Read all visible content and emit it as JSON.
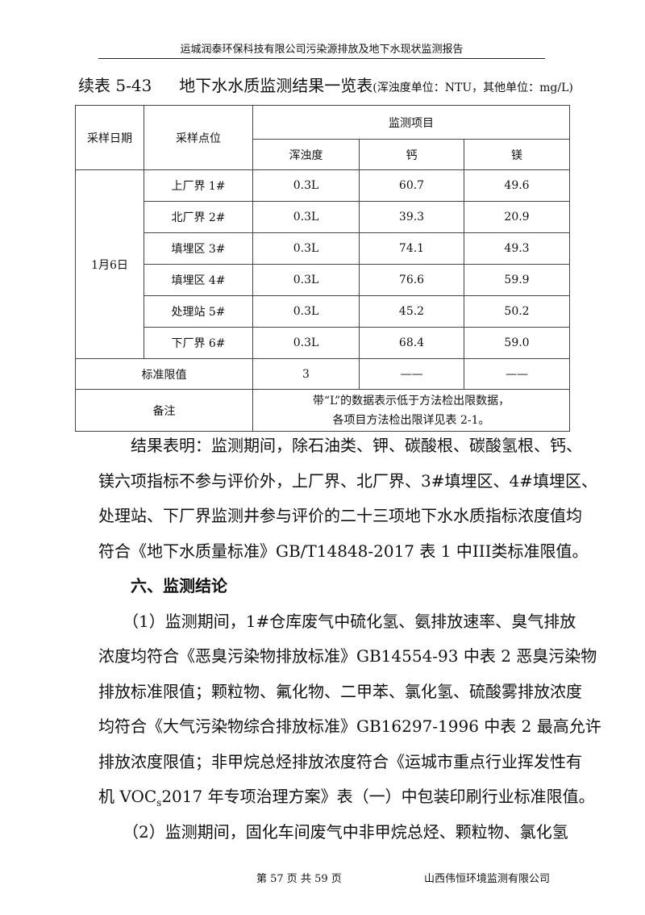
{
  "header": {
    "title": "运城润泰环保科技有限公司污染源排放及地下水现状监测报告"
  },
  "table": {
    "caption_no": "续表 5-43",
    "caption": "地下水水质监测结果一览表",
    "caption_unit": "(浑浊度单位：NTU，其他单位：mg/L)",
    "col_date": "采样日期",
    "col_site": "采样点位",
    "col_group": "监测项目",
    "cols": [
      "浑浊度",
      "钙",
      "镁"
    ],
    "date": "1月6日",
    "rows": [
      {
        "site": "上厂界 1#",
        "v": [
          "0.3L",
          "60.7",
          "49.6"
        ]
      },
      {
        "site": "北厂界 2#",
        "v": [
          "0.3L",
          "39.3",
          "20.9"
        ]
      },
      {
        "site": "填埋区 3#",
        "v": [
          "0.3L",
          "74.1",
          "49.3"
        ]
      },
      {
        "site": "填埋区 4#",
        "v": [
          "0.3L",
          "76.6",
          "59.9"
        ]
      },
      {
        "site": "处理站 5#",
        "v": [
          "0.3L",
          "45.2",
          "50.2"
        ]
      },
      {
        "site": "下厂界 6#",
        "v": [
          "0.3L",
          "68.4",
          "59.0"
        ]
      }
    ],
    "std_label": "标准限值",
    "std": [
      "3",
      "——",
      "——"
    ],
    "remark_label": "备注",
    "remark": [
      "带“L”的数据表示低于方法检出限数据，",
      "各项目方法检出限详见表 2-1。"
    ]
  },
  "p1": [
    "　　结果表明：监测期间，除石油类、钾、碳酸根、碳酸氢根、钙、",
    "镁六项指标不参与评价外，上厂界、北厂界、3#填埋区、4#填埋区、",
    "处理站、下厂界监测井参与评价的二十三项地下水水质指标浓度值均",
    "符合《地下水质量标准》GB/T14848-2017 表 1 中III类标准限值。"
  ],
  "section": "　　六、监测结论",
  "p2": [
    "　　（1）监测期间，1#仓库废气中硫化氢、氨排放速率、臭气排放",
    "浓度均符合《恶臭污染物排放标准》GB14554-93 中表 2 恶臭污染物",
    "排放标准限值；颗粒物、氟化物、二甲苯、氯化氢、硫酸雾排放浓度",
    "均符合《大气污染物综合排放标准》GB16297-1996 中表 2 最高允许",
    "排放浓度限值；非甲烷总烃排放浓度符合《运城市重点行业挥发性有"
  ],
  "p2_last_a": "机 VOC",
  "p2_last_sub": "s",
  "p2_last_b": "2017 年专项治理方案》表（一）中包装印刷行业标准限值。",
  "p3": [
    "　　（2）监测期间，固化车间废气中非甲烷总烃、颗粒物、氯化氢"
  ],
  "footer": {
    "page": "第 57 页 共 59 页",
    "org": "山西伟恒环境监测有限公司"
  }
}
